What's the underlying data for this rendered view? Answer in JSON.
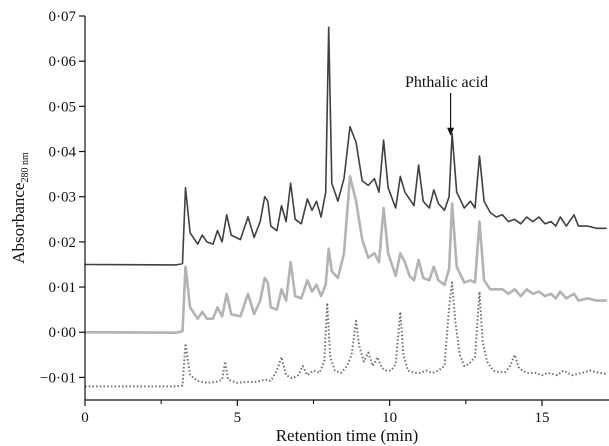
{
  "chart_data": {
    "type": "line",
    "xlabel": "Retention time (min)",
    "ylabel_main": "Absorbance",
    "ylabel_sub": "280 nm",
    "xlim": [
      0,
      17.2
    ],
    "ylim": [
      -0.015,
      0.07
    ],
    "x_ticks": [
      0,
      5,
      10,
      15
    ],
    "x_minor_ticks": [
      2.5,
      7.5,
      12.5
    ],
    "y_ticks": [
      -0.01,
      0.0,
      0.01,
      0.02,
      0.03,
      0.04,
      0.05,
      0.06,
      0.07
    ],
    "x_tick_labels": [
      "0",
      "5",
      "10",
      "15"
    ],
    "y_tick_labels": [
      "−0·01",
      "0·00",
      "0·01",
      "0·02",
      "0·03",
      "0·04",
      "0·05",
      "0·06",
      "0·07"
    ],
    "annotation": {
      "text": "Phthalic acid",
      "x": 12.0,
      "y": 0.0435
    },
    "series": [
      {
        "color": "#404040",
        "style": "solid",
        "width": 1.6,
        "points": [
          [
            0,
            0.015
          ],
          [
            3.0,
            0.0149
          ],
          [
            3.2,
            0.0152
          ],
          [
            3.3,
            0.032
          ],
          [
            3.45,
            0.022
          ],
          [
            3.7,
            0.0195
          ],
          [
            3.85,
            0.0215
          ],
          [
            4.0,
            0.02
          ],
          [
            4.2,
            0.0195
          ],
          [
            4.35,
            0.0225
          ],
          [
            4.5,
            0.02
          ],
          [
            4.65,
            0.026
          ],
          [
            4.8,
            0.0215
          ],
          [
            5.1,
            0.0205
          ],
          [
            5.35,
            0.0255
          ],
          [
            5.55,
            0.021
          ],
          [
            5.75,
            0.0245
          ],
          [
            5.9,
            0.03
          ],
          [
            6.0,
            0.029
          ],
          [
            6.1,
            0.0235
          ],
          [
            6.3,
            0.0225
          ],
          [
            6.45,
            0.028
          ],
          [
            6.6,
            0.0245
          ],
          [
            6.75,
            0.033
          ],
          [
            6.9,
            0.025
          ],
          [
            7.1,
            0.024
          ],
          [
            7.3,
            0.0295
          ],
          [
            7.45,
            0.027
          ],
          [
            7.6,
            0.029
          ],
          [
            7.75,
            0.0255
          ],
          [
            7.9,
            0.031
          ],
          [
            8.0,
            0.0675
          ],
          [
            8.1,
            0.033
          ],
          [
            8.3,
            0.029
          ],
          [
            8.5,
            0.034
          ],
          [
            8.7,
            0.0455
          ],
          [
            8.9,
            0.042
          ],
          [
            9.1,
            0.0335
          ],
          [
            9.3,
            0.0325
          ],
          [
            9.5,
            0.034
          ],
          [
            9.65,
            0.031
          ],
          [
            9.8,
            0.0425
          ],
          [
            9.95,
            0.032
          ],
          [
            10.2,
            0.0275
          ],
          [
            10.35,
            0.0345
          ],
          [
            10.5,
            0.031
          ],
          [
            10.65,
            0.0295
          ],
          [
            10.8,
            0.028
          ],
          [
            10.95,
            0.037
          ],
          [
            11.1,
            0.029
          ],
          [
            11.3,
            0.0275
          ],
          [
            11.45,
            0.0315
          ],
          [
            11.6,
            0.0285
          ],
          [
            11.8,
            0.027
          ],
          [
            11.95,
            0.03
          ],
          [
            12.05,
            0.044
          ],
          [
            12.2,
            0.031
          ],
          [
            12.45,
            0.0275
          ],
          [
            12.65,
            0.029
          ],
          [
            12.8,
            0.0275
          ],
          [
            12.95,
            0.039
          ],
          [
            13.1,
            0.029
          ],
          [
            13.3,
            0.0265
          ],
          [
            13.5,
            0.0255
          ],
          [
            13.7,
            0.026
          ],
          [
            13.9,
            0.0245
          ],
          [
            14.1,
            0.025
          ],
          [
            14.3,
            0.024
          ],
          [
            14.5,
            0.0255
          ],
          [
            14.7,
            0.0245
          ],
          [
            14.9,
            0.0255
          ],
          [
            15.1,
            0.024
          ],
          [
            15.3,
            0.0245
          ],
          [
            15.45,
            0.0235
          ],
          [
            15.6,
            0.0255
          ],
          [
            15.8,
            0.0235
          ],
          [
            16.05,
            0.026
          ],
          [
            16.2,
            0.0235
          ],
          [
            16.5,
            0.0235
          ],
          [
            16.8,
            0.023
          ],
          [
            17.1,
            0.023
          ]
        ]
      },
      {
        "color": "#b3b3b3",
        "style": "solid",
        "width": 2.6,
        "points": [
          [
            0,
            0.0
          ],
          [
            3.0,
            -0.0001
          ],
          [
            3.2,
            0.0002
          ],
          [
            3.3,
            0.0145
          ],
          [
            3.45,
            0.0055
          ],
          [
            3.7,
            0.003
          ],
          [
            3.85,
            0.0045
          ],
          [
            4.0,
            0.003
          ],
          [
            4.2,
            0.003
          ],
          [
            4.35,
            0.0055
          ],
          [
            4.5,
            0.0035
          ],
          [
            4.65,
            0.0085
          ],
          [
            4.8,
            0.004
          ],
          [
            5.1,
            0.0035
          ],
          [
            5.35,
            0.0085
          ],
          [
            5.55,
            0.004
          ],
          [
            5.75,
            0.007
          ],
          [
            5.9,
            0.012
          ],
          [
            6.0,
            0.011
          ],
          [
            6.1,
            0.0055
          ],
          [
            6.3,
            0.005
          ],
          [
            6.45,
            0.0095
          ],
          [
            6.6,
            0.007
          ],
          [
            6.75,
            0.0155
          ],
          [
            6.9,
            0.008
          ],
          [
            7.1,
            0.0075
          ],
          [
            7.3,
            0.0115
          ],
          [
            7.45,
            0.009
          ],
          [
            7.6,
            0.0105
          ],
          [
            7.75,
            0.008
          ],
          [
            7.9,
            0.0105
          ],
          [
            8.0,
            0.0185
          ],
          [
            8.1,
            0.0135
          ],
          [
            8.3,
            0.012
          ],
          [
            8.5,
            0.0175
          ],
          [
            8.7,
            0.0345
          ],
          [
            8.9,
            0.029
          ],
          [
            9.1,
            0.0205
          ],
          [
            9.3,
            0.0165
          ],
          [
            9.5,
            0.0175
          ],
          [
            9.65,
            0.0155
          ],
          [
            9.8,
            0.0275
          ],
          [
            9.95,
            0.0175
          ],
          [
            10.2,
            0.0125
          ],
          [
            10.35,
            0.0175
          ],
          [
            10.5,
            0.0155
          ],
          [
            10.65,
            0.0125
          ],
          [
            10.8,
            0.0115
          ],
          [
            10.95,
            0.016
          ],
          [
            11.1,
            0.012
          ],
          [
            11.3,
            0.0115
          ],
          [
            11.45,
            0.0145
          ],
          [
            11.6,
            0.0115
          ],
          [
            11.8,
            0.0105
          ],
          [
            11.95,
            0.014
          ],
          [
            12.05,
            0.0285
          ],
          [
            12.2,
            0.0145
          ],
          [
            12.45,
            0.011
          ],
          [
            12.65,
            0.0115
          ],
          [
            12.8,
            0.011
          ],
          [
            12.95,
            0.0245
          ],
          [
            13.1,
            0.0115
          ],
          [
            13.3,
            0.0095
          ],
          [
            13.5,
            0.0095
          ],
          [
            13.7,
            0.0095
          ],
          [
            13.9,
            0.0085
          ],
          [
            14.1,
            0.0095
          ],
          [
            14.3,
            0.008
          ],
          [
            14.5,
            0.0095
          ],
          [
            14.7,
            0.0085
          ],
          [
            14.9,
            0.009
          ],
          [
            15.1,
            0.008
          ],
          [
            15.3,
            0.0085
          ],
          [
            15.45,
            0.0075
          ],
          [
            15.6,
            0.009
          ],
          [
            15.8,
            0.0075
          ],
          [
            16.05,
            0.0085
          ],
          [
            16.2,
            0.007
          ],
          [
            16.5,
            0.0075
          ],
          [
            16.8,
            0.007
          ],
          [
            17.1,
            0.007
          ]
        ]
      },
      {
        "color": "#707070",
        "style": "dotted",
        "width": 2.0,
        "points": [
          [
            0,
            -0.012
          ],
          [
            3.0,
            -0.012
          ],
          [
            3.2,
            -0.0118
          ],
          [
            3.3,
            -0.0025
          ],
          [
            3.45,
            -0.0095
          ],
          [
            3.7,
            -0.0108
          ],
          [
            4.0,
            -0.0112
          ],
          [
            4.3,
            -0.011
          ],
          [
            4.5,
            -0.0105
          ],
          [
            4.6,
            -0.0065
          ],
          [
            4.7,
            -0.0105
          ],
          [
            5.0,
            -0.0112
          ],
          [
            5.3,
            -0.011
          ],
          [
            5.6,
            -0.011
          ],
          [
            5.9,
            -0.0105
          ],
          [
            6.1,
            -0.0108
          ],
          [
            6.3,
            -0.0085
          ],
          [
            6.45,
            -0.0055
          ],
          [
            6.6,
            -0.0095
          ],
          [
            6.8,
            -0.0102
          ],
          [
            7.0,
            -0.0095
          ],
          [
            7.15,
            -0.0075
          ],
          [
            7.3,
            -0.0095
          ],
          [
            7.5,
            -0.0085
          ],
          [
            7.7,
            -0.009
          ],
          [
            7.85,
            -0.0065
          ],
          [
            7.95,
            0.0065
          ],
          [
            8.05,
            -0.0055
          ],
          [
            8.2,
            -0.0085
          ],
          [
            8.4,
            -0.009
          ],
          [
            8.6,
            -0.0075
          ],
          [
            8.75,
            -0.005
          ],
          [
            8.9,
            0.0025
          ],
          [
            9.0,
            -0.003
          ],
          [
            9.15,
            -0.0065
          ],
          [
            9.3,
            -0.0045
          ],
          [
            9.45,
            -0.0075
          ],
          [
            9.6,
            -0.0055
          ],
          [
            9.75,
            -0.008
          ],
          [
            9.9,
            -0.0085
          ],
          [
            10.05,
            -0.0085
          ],
          [
            10.2,
            -0.007
          ],
          [
            10.35,
            0.0045
          ],
          [
            10.45,
            -0.005
          ],
          [
            10.6,
            -0.0085
          ],
          [
            10.8,
            -0.009
          ],
          [
            11.0,
            -0.009
          ],
          [
            11.2,
            -0.0085
          ],
          [
            11.4,
            -0.009
          ],
          [
            11.6,
            -0.0085
          ],
          [
            11.8,
            -0.0075
          ],
          [
            11.95,
            0.0055
          ],
          [
            12.05,
            0.011
          ],
          [
            12.15,
            0.0025
          ],
          [
            12.3,
            -0.005
          ],
          [
            12.45,
            -0.0075
          ],
          [
            12.6,
            -0.007
          ],
          [
            12.8,
            -0.0055
          ],
          [
            12.95,
            0.009
          ],
          [
            13.05,
            -0.002
          ],
          [
            13.2,
            -0.0065
          ],
          [
            13.4,
            -0.0085
          ],
          [
            13.6,
            -0.0088
          ],
          [
            13.8,
            -0.0088
          ],
          [
            13.95,
            -0.0075
          ],
          [
            14.1,
            -0.005
          ],
          [
            14.25,
            -0.008
          ],
          [
            14.5,
            -0.009
          ],
          [
            14.8,
            -0.009
          ],
          [
            15.0,
            -0.0095
          ],
          [
            15.2,
            -0.009
          ],
          [
            15.5,
            -0.0095
          ],
          [
            15.7,
            -0.0085
          ],
          [
            16.0,
            -0.0095
          ],
          [
            16.3,
            -0.009
          ],
          [
            16.6,
            -0.0085
          ],
          [
            16.9,
            -0.009
          ],
          [
            17.1,
            -0.0092
          ]
        ]
      }
    ]
  }
}
